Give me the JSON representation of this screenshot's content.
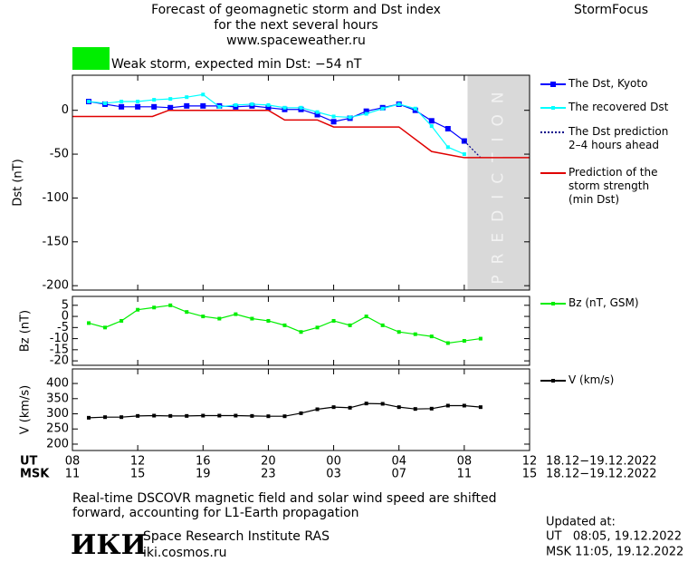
{
  "header": {
    "title_lines": [
      "Forecast of geomagnetic storm and Dst index",
      "for the next several hours",
      "www.spaceweather.ru"
    ],
    "brand": "StormFocus"
  },
  "chart_data": [
    {
      "type": "line",
      "ylabel": "Dst (nT)",
      "xlim": [
        0,
        28
      ],
      "ylim": [
        -205,
        40
      ],
      "yticks": [
        0,
        -50,
        -100,
        -150,
        -200
      ],
      "alert": {
        "color": "#00ee00",
        "text": "Weak storm, expected min Dst: −54 nT"
      },
      "prediction_xlim": [
        24.2,
        28
      ],
      "prediction_label": "PREDICTION",
      "series": [
        {
          "name": "The Dst, Kyoto",
          "color": "#0000ff",
          "style": "solid",
          "marker": "big",
          "x": [
            1,
            2,
            3,
            4,
            5,
            6,
            7,
            8,
            9,
            10,
            11,
            12,
            13,
            14,
            15,
            16,
            17,
            18,
            19,
            20,
            21,
            22,
            23,
            24
          ],
          "values": [
            10,
            7,
            4,
            4,
            4,
            3,
            5,
            5,
            5,
            4,
            5,
            3,
            1,
            1,
            -5,
            -13,
            -9,
            -1,
            3,
            7,
            0,
            -12,
            -21,
            -35
          ]
        },
        {
          "name": "The recovered Dst",
          "color": "#00ffff",
          "style": "solid",
          "marker": "small",
          "x": [
            1,
            2,
            3,
            4,
            5,
            6,
            7,
            8,
            9,
            10,
            11,
            12,
            13,
            14,
            15,
            16,
            17,
            18,
            19,
            20,
            21,
            22,
            23,
            24
          ],
          "values": [
            10,
            8,
            10,
            10,
            12,
            13,
            15,
            18,
            4,
            6,
            7,
            6,
            3,
            3,
            -2,
            -7,
            -8,
            -4,
            2,
            7,
            2,
            -18,
            -42,
            -50
          ]
        },
        {
          "name": "The Dst prediction 2–4 hours ahead",
          "color": "#00008b",
          "style": "dotted",
          "marker": "none",
          "x": [
            24,
            25
          ],
          "values": [
            -35,
            -54
          ]
        },
        {
          "name": "Prediction of the storm strength (min Dst)",
          "color": "#e00000",
          "style": "solid",
          "marker": "none",
          "x": [
            0,
            4.9,
            5.9,
            12,
            13,
            15,
            16,
            20,
            22,
            24,
            28
          ],
          "values": [
            -7,
            -7,
            0,
            0,
            -11,
            -11,
            -19,
            -19,
            -47,
            -54,
            -54
          ]
        }
      ]
    },
    {
      "type": "line",
      "ylabel": "Bz (nT)",
      "xlim": [
        0,
        28
      ],
      "ylim": [
        -22,
        9
      ],
      "yticks": [
        5,
        0,
        -5,
        -10,
        -15,
        -20
      ],
      "series": [
        {
          "name": "Bz (nT, GSM)",
          "color": "#00ee00",
          "style": "solid",
          "marker": "small",
          "x": [
            1,
            2,
            3,
            4,
            5,
            6,
            7,
            8,
            9,
            10,
            11,
            12,
            13,
            14,
            15,
            16,
            17,
            18,
            19,
            20,
            21,
            22,
            23,
            24,
            25
          ],
          "values": [
            -3,
            -5,
            -2,
            3,
            4,
            5,
            2,
            0,
            -1,
            1,
            -1,
            -2,
            -4,
            -7,
            -5,
            -2,
            -4,
            0,
            -4,
            -7,
            -8,
            -9,
            -12,
            -11,
            -10
          ]
        }
      ]
    },
    {
      "type": "line",
      "ylabel": "V (km/s)",
      "xlim": [
        0,
        28
      ],
      "ylim": [
        179,
        448
      ],
      "yticks": [
        400,
        350,
        300,
        250,
        200
      ],
      "xticks": [
        {
          "value": 0,
          "label": "08"
        },
        {
          "value": 4,
          "label": "12"
        },
        {
          "value": 8,
          "label": "16"
        },
        {
          "value": 12,
          "label": "20"
        },
        {
          "value": 16,
          "label": "00"
        },
        {
          "value": 20,
          "label": "04"
        },
        {
          "value": 24,
          "label": "08"
        },
        {
          "value": 28,
          "label": "12"
        }
      ],
      "xticks_msk": [
        {
          "value": 0,
          "label": "11"
        },
        {
          "value": 4,
          "label": "15"
        },
        {
          "value": 8,
          "label": "19"
        },
        {
          "value": 12,
          "label": "23"
        },
        {
          "value": 16,
          "label": "03"
        },
        {
          "value": 20,
          "label": "07"
        },
        {
          "value": 24,
          "label": "11"
        },
        {
          "value": 28,
          "label": "15"
        }
      ],
      "x_row_labels": [
        "UT",
        "MSK"
      ],
      "date_ranges": [
        "18.12−19.12.2022",
        "18.12−19.12.2022"
      ],
      "series": [
        {
          "name": "V (km/s)",
          "color": "#000000",
          "style": "solid",
          "marker": "small",
          "x": [
            1,
            2,
            3,
            4,
            5,
            6,
            7,
            8,
            9,
            10,
            11,
            12,
            13,
            14,
            15,
            16,
            17,
            18,
            19,
            20,
            21,
            22,
            23,
            24,
            25
          ],
          "values": [
            287,
            289,
            289,
            293,
            294,
            293,
            293,
            294,
            294,
            294,
            293,
            292,
            292,
            302,
            315,
            322,
            320,
            334,
            333,
            322,
            316,
            317,
            327,
            327,
            322
          ]
        }
      ]
    }
  ],
  "footer": {
    "note_lines": [
      "Real-time DSCOVR magnetic field and solar wind speed are shifted",
      "forward, accounting for L1-Earth propagation"
    ],
    "logo": "ИКИ",
    "institute": "Space Research Institute RAS",
    "url": "iki.cosmos.ru",
    "updated_lines": [
      "Updated at:",
      "UT   08:05, 19.12.2022",
      "MSK 11:05, 19.12.2022"
    ]
  }
}
